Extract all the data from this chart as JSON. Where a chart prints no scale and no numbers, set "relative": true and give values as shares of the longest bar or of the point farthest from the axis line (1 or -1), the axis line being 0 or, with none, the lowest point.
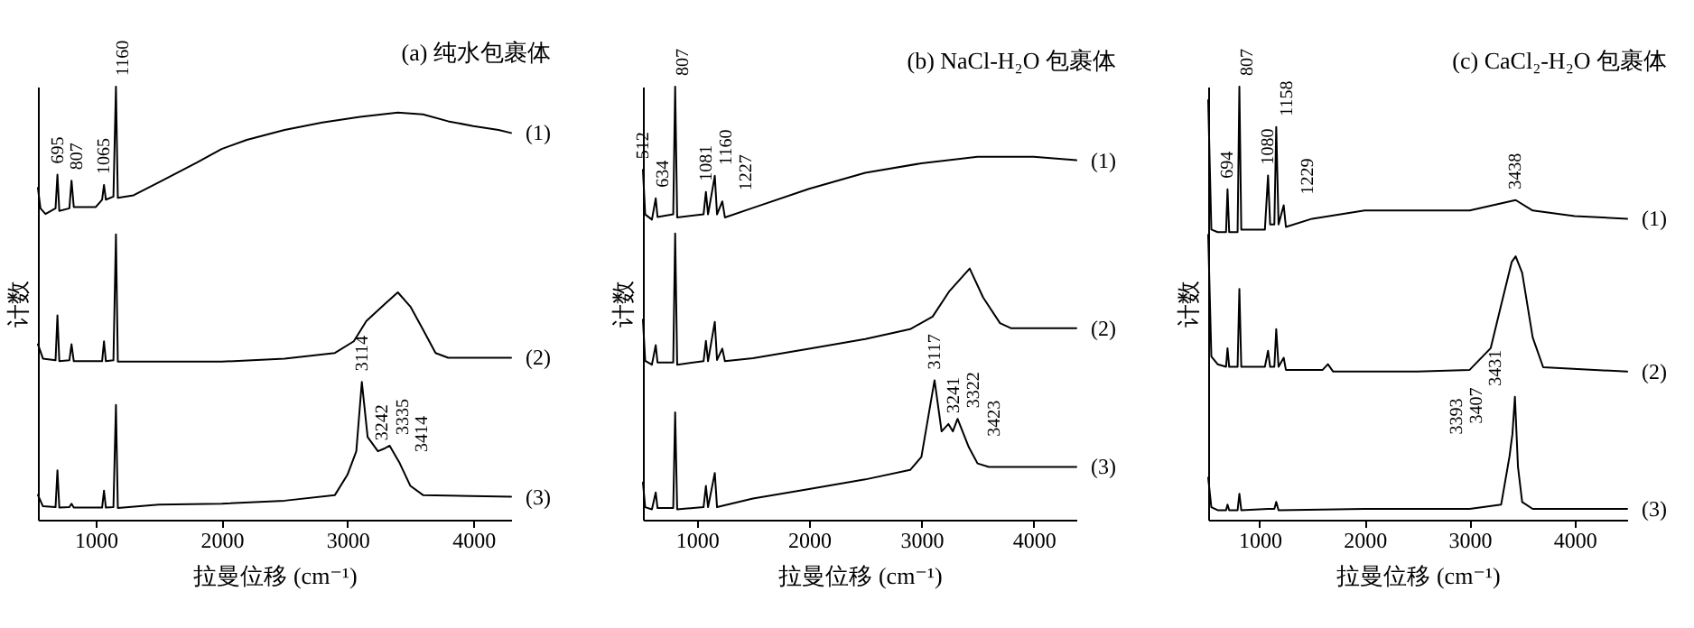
{
  "chart_data": [
    {
      "type": "line",
      "title": "(a) 纯水包裹体",
      "xlabel": "拉曼位移 (cm⁻¹)",
      "ylabel": "计数",
      "relative": true,
      "xlim": [
        540,
        4300
      ],
      "xticks": [
        1000,
        2000,
        3000,
        4000
      ],
      "series": [
        {
          "name": "(1)",
          "color": "#000000",
          "x": [
            540,
            560,
            600,
            680,
            695,
            710,
            790,
            807,
            825,
            1000,
            1050,
            1065,
            1080,
            1140,
            1160,
            1175,
            1300,
            1500,
            1800,
            2000,
            2200,
            2500,
            2800,
            3100,
            3400,
            3600,
            3800,
            4000,
            4200,
            4300
          ],
          "values": [
            0.766,
            0.719,
            0.706,
            0.719,
            0.797,
            0.713,
            0.719,
            0.783,
            0.722,
            0.722,
            0.739,
            0.773,
            0.739,
            0.746,
            1.0,
            0.743,
            0.749,
            0.779,
            0.824,
            0.856,
            0.877,
            0.9,
            0.917,
            0.93,
            0.94,
            0.936,
            0.92,
            0.909,
            0.9,
            0.893
          ]
        },
        {
          "name": "(2)",
          "color": "#000000",
          "x": [
            540,
            580,
            680,
            695,
            710,
            790,
            807,
            825,
            1050,
            1065,
            1080,
            1140,
            1160,
            1175,
            1500,
            2000,
            2500,
            2900,
            3050,
            3150,
            3300,
            3400,
            3500,
            3600,
            3700,
            3800,
            4300
          ],
          "values": [
            0.405,
            0.372,
            0.368,
            0.472,
            0.366,
            0.368,
            0.405,
            0.366,
            0.366,
            0.412,
            0.366,
            0.368,
            0.659,
            0.365,
            0.365,
            0.365,
            0.372,
            0.385,
            0.412,
            0.459,
            0.499,
            0.525,
            0.492,
            0.439,
            0.385,
            0.374,
            0.374
          ]
        },
        {
          "name": "(3)",
          "color": "#000000",
          "x": [
            540,
            580,
            680,
            695,
            710,
            790,
            807,
            825,
            1050,
            1065,
            1080,
            1140,
            1160,
            1175,
            1500,
            2000,
            2500,
            2900,
            3000,
            3070,
            3114,
            3160,
            3242,
            3290,
            3335,
            3414,
            3500,
            3600,
            4300
          ],
          "values": [
            0.057,
            0.031,
            0.029,
            0.114,
            0.028,
            0.029,
            0.037,
            0.028,
            0.028,
            0.067,
            0.028,
            0.029,
            0.265,
            0.027,
            0.035,
            0.037,
            0.044,
            0.057,
            0.104,
            0.158,
            0.318,
            0.191,
            0.158,
            0.164,
            0.171,
            0.131,
            0.078,
            0.057,
            0.053
          ]
        }
      ],
      "annotations": [
        {
          "text": "695",
          "x": 695,
          "y": 0.797
        },
        {
          "text": "807",
          "x": 807,
          "y": 0.783
        },
        {
          "text": "1065",
          "x": 1065,
          "y": 0.773
        },
        {
          "text": "1160",
          "x": 1160,
          "y": 1.0
        },
        {
          "text": "3114",
          "x": 3114,
          "y": 0.318
        },
        {
          "text": "3242",
          "x": 3242,
          "y": 0.158
        },
        {
          "text": "3335",
          "x": 3335,
          "y": 0.171
        },
        {
          "text": "3414",
          "x": 3414,
          "y": 0.131
        }
      ]
    },
    {
      "type": "line",
      "title": "(b) NaCl-H₂O 包裹体",
      "xlabel": "拉曼位移 (cm⁻¹)",
      "ylabel": "计数",
      "relative": true,
      "xlim": [
        520,
        4380
      ],
      "xticks": [
        1000,
        2000,
        3000,
        4000
      ],
      "series": [
        {
          "name": "(1)",
          "color": "#000000",
          "x": [
            520,
            540,
            600,
            634,
            650,
            790,
            807,
            825,
            1060,
            1081,
            1100,
            1160,
            1180,
            1227,
            1250,
            1500,
            2000,
            2500,
            3000,
            3500,
            4000,
            4380
          ],
          "values": [
            0.808,
            0.705,
            0.693,
            0.742,
            0.699,
            0.705,
            1.0,
            0.698,
            0.705,
            0.757,
            0.705,
            0.794,
            0.705,
            0.735,
            0.698,
            0.72,
            0.764,
            0.801,
            0.823,
            0.838,
            0.838,
            0.83
          ]
        },
        {
          "name": "(2)",
          "color": "#000000",
          "x": [
            520,
            540,
            600,
            634,
            650,
            790,
            807,
            825,
            1060,
            1081,
            1100,
            1160,
            1180,
            1227,
            1250,
            1500,
            2000,
            2500,
            2900,
            3100,
            3250,
            3430,
            3550,
            3700,
            3800,
            4380
          ],
          "values": [
            0.462,
            0.367,
            0.358,
            0.403,
            0.363,
            0.363,
            0.661,
            0.358,
            0.366,
            0.413,
            0.366,
            0.457,
            0.369,
            0.395,
            0.366,
            0.373,
            0.395,
            0.417,
            0.44,
            0.469,
            0.528,
            0.58,
            0.513,
            0.454,
            0.442,
            0.442
          ]
        },
        {
          "name": "(3)",
          "color": "#000000",
          "x": [
            520,
            540,
            600,
            634,
            650,
            790,
            807,
            825,
            1060,
            1081,
            1100,
            1160,
            1180,
            1500,
            2000,
            2500,
            2900,
            3000,
            3117,
            3180,
            3241,
            3280,
            3322,
            3423,
            3500,
            3600,
            4380
          ],
          "values": [
            0.086,
            0.029,
            0.024,
            0.063,
            0.027,
            0.027,
            0.248,
            0.024,
            0.029,
            0.078,
            0.029,
            0.108,
            0.029,
            0.049,
            0.071,
            0.093,
            0.115,
            0.145,
            0.322,
            0.204,
            0.221,
            0.204,
            0.233,
            0.167,
            0.13,
            0.122,
            0.122
          ]
        }
      ],
      "annotations": [
        {
          "text": "512",
          "x": 520,
          "y": 0.808
        },
        {
          "text": "634",
          "x": 634,
          "y": 0.742
        },
        {
          "text": "807",
          "x": 807,
          "y": 1.0
        },
        {
          "text": "1081",
          "x": 1081,
          "y": 0.757
        },
        {
          "text": "1160",
          "x": 1160,
          "y": 0.794
        },
        {
          "text": "1227",
          "x": 1227,
          "y": 0.735
        },
        {
          "text": "3117",
          "x": 3117,
          "y": 0.322
        },
        {
          "text": "3241",
          "x": 3241,
          "y": 0.221
        },
        {
          "text": "3322",
          "x": 3322,
          "y": 0.233
        },
        {
          "text": "3423",
          "x": 3423,
          "y": 0.167
        }
      ]
    },
    {
      "type": "line",
      "title": "(c) CaCl₂-H₂O 包裹体",
      "xlabel": "拉曼位移 (cm⁻¹)",
      "ylabel": "计数",
      "relative": true,
      "xlim": [
        510,
        4500
      ],
      "xticks": [
        1000,
        2000,
        3000,
        4000
      ],
      "series": [
        {
          "name": "(1)",
          "color": "#000000",
          "x": [
            510,
            540,
            600,
            680,
            694,
            710,
            790,
            807,
            825,
            1050,
            1080,
            1100,
            1140,
            1158,
            1180,
            1229,
            1250,
            1500,
            2000,
            2500,
            3000,
            3438,
            3600,
            4000,
            4500
          ],
          "values": [
            0.969,
            0.67,
            0.664,
            0.664,
            0.763,
            0.664,
            0.664,
            1.0,
            0.67,
            0.67,
            0.795,
            0.682,
            0.682,
            0.907,
            0.682,
            0.726,
            0.676,
            0.695,
            0.714,
            0.714,
            0.714,
            0.738,
            0.714,
            0.701,
            0.695
          ]
        },
        {
          "name": "(2)",
          "color": "#000000",
          "x": [
            510,
            540,
            600,
            680,
            694,
            710,
            790,
            807,
            825,
            1050,
            1080,
            1100,
            1140,
            1158,
            1180,
            1229,
            1250,
            1600,
            1650,
            1700,
            2500,
            3000,
            3200,
            3300,
            3400,
            3438,
            3500,
            3600,
            3700,
            4500
          ],
          "values": [
            0.658,
            0.377,
            0.359,
            0.353,
            0.396,
            0.353,
            0.353,
            0.533,
            0.353,
            0.353,
            0.39,
            0.353,
            0.353,
            0.44,
            0.353,
            0.374,
            0.346,
            0.346,
            0.359,
            0.342,
            0.342,
            0.346,
            0.396,
            0.496,
            0.595,
            0.608,
            0.57,
            0.421,
            0.352,
            0.342
          ]
        },
        {
          "name": "(3)",
          "color": "#000000",
          "x": [
            510,
            540,
            600,
            680,
            694,
            710,
            790,
            807,
            825,
            1080,
            1140,
            1158,
            1180,
            2000,
            3000,
            3300,
            3380,
            3393,
            3407,
            3431,
            3460,
            3500,
            3600,
            4500
          ],
          "values": [
            0.097,
            0.029,
            0.022,
            0.022,
            0.035,
            0.022,
            0.022,
            0.06,
            0.022,
            0.025,
            0.025,
            0.041,
            0.022,
            0.025,
            0.025,
            0.035,
            0.147,
            0.172,
            0.197,
            0.284,
            0.122,
            0.041,
            0.025,
            0.025
          ]
        }
      ],
      "annotations": [
        {
          "text": "694",
          "x": 694,
          "y": 0.763
        },
        {
          "text": "807",
          "x": 807,
          "y": 1.0
        },
        {
          "text": "1080",
          "x": 1080,
          "y": 0.795
        },
        {
          "text": "1158",
          "x": 1158,
          "y": 0.907
        },
        {
          "text": "1229",
          "x": 1229,
          "y": 0.726
        },
        {
          "text": "3438",
          "x": 3438,
          "y": 0.738
        },
        {
          "text": "3393",
          "x": 3393,
          "y": 0.172
        },
        {
          "text": "3407",
          "x": 3407,
          "y": 0.197
        },
        {
          "text": "3431",
          "x": 3431,
          "y": 0.284
        }
      ]
    }
  ]
}
